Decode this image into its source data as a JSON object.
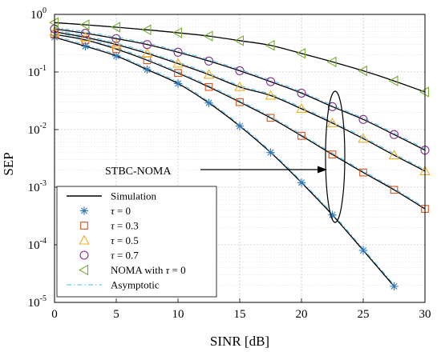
{
  "chart_data": {
    "type": "line",
    "xlabel": "SINR [dB]",
    "ylabel": "SEP",
    "xlim": [
      0,
      30
    ],
    "ylim": [
      1e-05,
      1
    ],
    "yscale": "log",
    "grid": true,
    "legend_position": "bottom-left",
    "x_ticks": [
      "0",
      "5",
      "10",
      "15",
      "20",
      "25",
      "30"
    ],
    "y_ticks": [
      {
        "base": "10",
        "exp": "0",
        "value": 1
      },
      {
        "base": "10",
        "exp": "-1",
        "value": 0.1
      },
      {
        "base": "10",
        "exp": "-2",
        "value": 0.01
      },
      {
        "base": "10",
        "exp": "-3",
        "value": 0.001
      },
      {
        "base": "10",
        "exp": "-4",
        "value": 0.0001
      },
      {
        "base": "10",
        "exp": "-5",
        "value": 1e-05
      }
    ],
    "annotation": {
      "text": "STBC-NOMA",
      "arrow_to": [
        22.5,
        0.001
      ]
    },
    "legend": [
      {
        "label": "Simulation",
        "style": "line",
        "color": "#000000"
      },
      {
        "tau": "τ",
        "rest": " = 0",
        "style": "star",
        "color": "#2e78b8"
      },
      {
        "tau": "τ",
        "rest": " = 0.3",
        "style": "square",
        "color": "#d95319"
      },
      {
        "tau": "τ",
        "rest": " = 0.5",
        "style": "triangle",
        "color": "#edb120"
      },
      {
        "tau": "τ",
        "rest": " = 0.7",
        "style": "circle",
        "color": "#7e2f8e"
      },
      {
        "label": "NOMA with ",
        "tau": "τ",
        "rest": " = 0",
        "style": "left-triangle",
        "color": "#77ac30"
      },
      {
        "label": "Asymptotic",
        "style": "dashdot",
        "color": "#4dbeee"
      }
    ],
    "series": [
      {
        "marker": "star",
        "color": "#2e78b8",
        "x": [
          0,
          2.5,
          5,
          7.5,
          10,
          12.5,
          15,
          17.5,
          20,
          22.5,
          25,
          27.5
        ],
        "y": [
          0.4,
          0.28,
          0.19,
          0.11,
          0.063,
          0.029,
          0.0115,
          0.004,
          0.0012,
          0.00033,
          8e-05,
          1.9e-05
        ]
      },
      {
        "marker": "square",
        "color": "#d95319",
        "x": [
          0,
          2.5,
          5,
          7.5,
          10,
          12.5,
          15,
          17.5,
          20,
          22.5,
          25,
          27.5,
          30
        ],
        "y": [
          0.45,
          0.36,
          0.25,
          0.16,
          0.096,
          0.055,
          0.03,
          0.016,
          0.0078,
          0.0037,
          0.0018,
          0.0009,
          0.00042
        ]
      },
      {
        "marker": "triangle",
        "color": "#edb120",
        "x": [
          0,
          2.5,
          5,
          7.5,
          10,
          12.5,
          15,
          17.5,
          20,
          22.5,
          25,
          27.5,
          30
        ],
        "y": [
          0.5,
          0.4,
          0.3,
          0.21,
          0.14,
          0.09,
          0.055,
          0.039,
          0.023,
          0.013,
          0.007,
          0.0036,
          0.0019
        ]
      },
      {
        "marker": "circle",
        "color": "#7e2f8e",
        "x": [
          0,
          2.5,
          5,
          7.5,
          10,
          12.5,
          15,
          17.5,
          20,
          22.5,
          25,
          27.5,
          30
        ],
        "y": [
          0.56,
          0.47,
          0.38,
          0.3,
          0.22,
          0.155,
          0.105,
          0.068,
          0.043,
          0.025,
          0.015,
          0.0082,
          0.0044
        ]
      },
      {
        "marker": "left-triangle",
        "color": "#77ac30",
        "x": [
          0,
          2.5,
          5,
          7.5,
          10,
          12.5,
          15,
          17.5,
          20,
          22.5,
          25,
          27.5,
          30
        ],
        "y": [
          0.72,
          0.66,
          0.6,
          0.54,
          0.48,
          0.42,
          0.35,
          0.29,
          0.21,
          0.15,
          0.105,
          0.07,
          0.045
        ]
      }
    ]
  }
}
